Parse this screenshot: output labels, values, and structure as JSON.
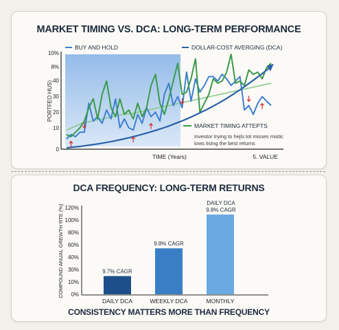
{
  "chart_data": [
    {
      "type": "line",
      "title": "MARKET TIMING VS. DCA: LONG-TERM PERFORMANCE",
      "xlabel": "TIME (Years)",
      "xlabel_right": "5. VALUE",
      "ylabel": "PORTFEO HUS)",
      "y_ticks": [
        "10%",
        "8%",
        "40",
        "30",
        "20",
        "10",
        "0"
      ],
      "legend": {
        "buy_and_hold": "BUY AND HOLD",
        "dca": "DOLLAR-COST AVERGING (DCA)",
        "market_timing": "MARKET TIMING ATTEPTS"
      },
      "annotation": "Investor trying to hejls tot misses mistic lows tising the best returns",
      "series": [
        {
          "name": "BUY AND HOLD",
          "color": "#3d7fcf",
          "values": [
            4,
            6,
            5,
            7,
            7,
            20,
            12,
            14,
            11,
            17,
            13,
            22,
            9,
            13,
            9,
            8,
            15,
            11,
            18,
            14,
            16,
            12,
            24,
            29,
            19,
            23,
            18,
            34,
            21,
            31,
            25,
            28,
            32,
            32,
            30,
            33,
            31,
            28,
            30,
            32,
            17,
            19,
            15,
            20,
            23,
            21,
            19
          ]
        },
        {
          "name": "DOLLAR-COST AVERGING (DCA)",
          "color": "#2b60a8",
          "values": [
            0,
            0.3,
            0.6,
            1,
            1.4,
            1.8,
            2.3,
            2.8,
            3.4,
            4,
            4.7,
            5.4,
            6.2,
            7,
            7.9,
            8.8,
            9.8,
            10.9,
            12,
            13.2,
            14.5,
            15.9,
            17.3,
            18.8,
            20.4,
            22.1,
            23.9,
            25.8,
            27.8,
            29.9,
            32,
            34.2,
            36.5
          ]
        },
        {
          "name": "MARKET TIMING ATTEPTS",
          "color": "#3a9a4a",
          "values": [
            6,
            5,
            7,
            9,
            12,
            18,
            22,
            13,
            24,
            30,
            18,
            14,
            22,
            15,
            17,
            13,
            20,
            14,
            18,
            28,
            33,
            20,
            15,
            22,
            30,
            38,
            24,
            25,
            31,
            40,
            16,
            20,
            24,
            31,
            29,
            30,
            34,
            42,
            29,
            30,
            28,
            35,
            33,
            34,
            31,
            36,
            38
          ]
        },
        {
          "name": "MARKET TIMING AVG",
          "color": "#8cc98c",
          "values": [
            8,
            9,
            10,
            11,
            11.5,
            12,
            12.5,
            13,
            13.5,
            14,
            14.5,
            15,
            15.2,
            15.5,
            16,
            16.5,
            17,
            17.5,
            18,
            18.5,
            19,
            19.5,
            20,
            20.5,
            21,
            21.5,
            22,
            22.5,
            23,
            23.5,
            24,
            24.5,
            25,
            25.5,
            26,
            26.5,
            27,
            27.5,
            28,
            28.5,
            29
          ]
        }
      ],
      "ylim": [
        0,
        42
      ],
      "arrows": [
        {
          "i": 1,
          "dir": "up"
        },
        {
          "i": 4,
          "dir": "down"
        },
        {
          "i": 15,
          "dir": "up"
        },
        {
          "i": 19,
          "dir": "up"
        },
        {
          "i": 26,
          "dir": "down"
        },
        {
          "i": 41,
          "dir": "down"
        },
        {
          "i": 44,
          "dir": "up"
        }
      ]
    },
    {
      "type": "bar",
      "title": "DCA FREQUENCY: LONG-TERM RETURNS",
      "ylabel": "COMPOUND ANUAL GREWTH RTE (%)",
      "y_ticks": [
        "120%",
        "100%",
        "80%",
        "60%",
        "40%",
        "30%",
        "10%",
        "0%"
      ],
      "categories": [
        "DAILY DCA",
        "WEEKLY DCA",
        "MONTHLY"
      ],
      "values": [
        9.7,
        9.8,
        9.8
      ],
      "bar_levels": [
        0.21,
        0.53,
        0.92
      ],
      "data_labels": [
        "9.7% CAGR",
        "9.8% CAGR",
        "DAILY DCA\n9.8% CAGR"
      ],
      "colors": [
        "#1d4f8a",
        "#3a7fc5",
        "#6aa9e2"
      ],
      "caption": "CONSISTENCY MATTERS MORE THAN FREQUENCY"
    }
  ]
}
